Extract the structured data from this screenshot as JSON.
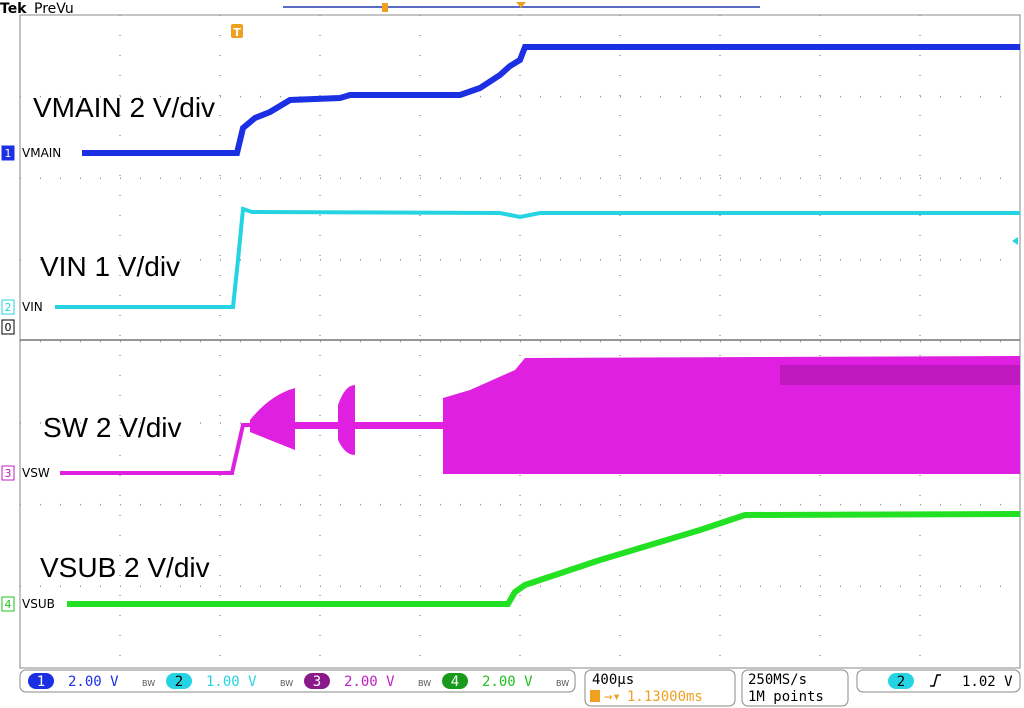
{
  "header": {
    "brand": "Tek",
    "mode": "PreVu"
  },
  "trace_labels": [
    "VMAIN 2 V/div",
    "VIN 1 V/div",
    "SW 2 V/div",
    "VSUB 2 V/div"
  ],
  "channels": [
    {
      "number": "1",
      "name": "VMAIN",
      "scale": "2.00 V"
    },
    {
      "number": "2",
      "name": "VIN",
      "scale": "1.00 V"
    },
    {
      "number": "3",
      "name": "VSW",
      "scale": "2.00 V"
    },
    {
      "number": "4",
      "name": "VSUB",
      "scale": "2.00 V"
    }
  ],
  "ground_marker": "0",
  "bandwidth_icon": "BW",
  "trigger_marker": "T",
  "timebase": {
    "scale": "400µs",
    "position": "1.13000ms"
  },
  "acquisition": {
    "rate": "250MS/s",
    "length": "1M points"
  },
  "trigger": {
    "source": "2",
    "level": "1.02 V"
  }
}
